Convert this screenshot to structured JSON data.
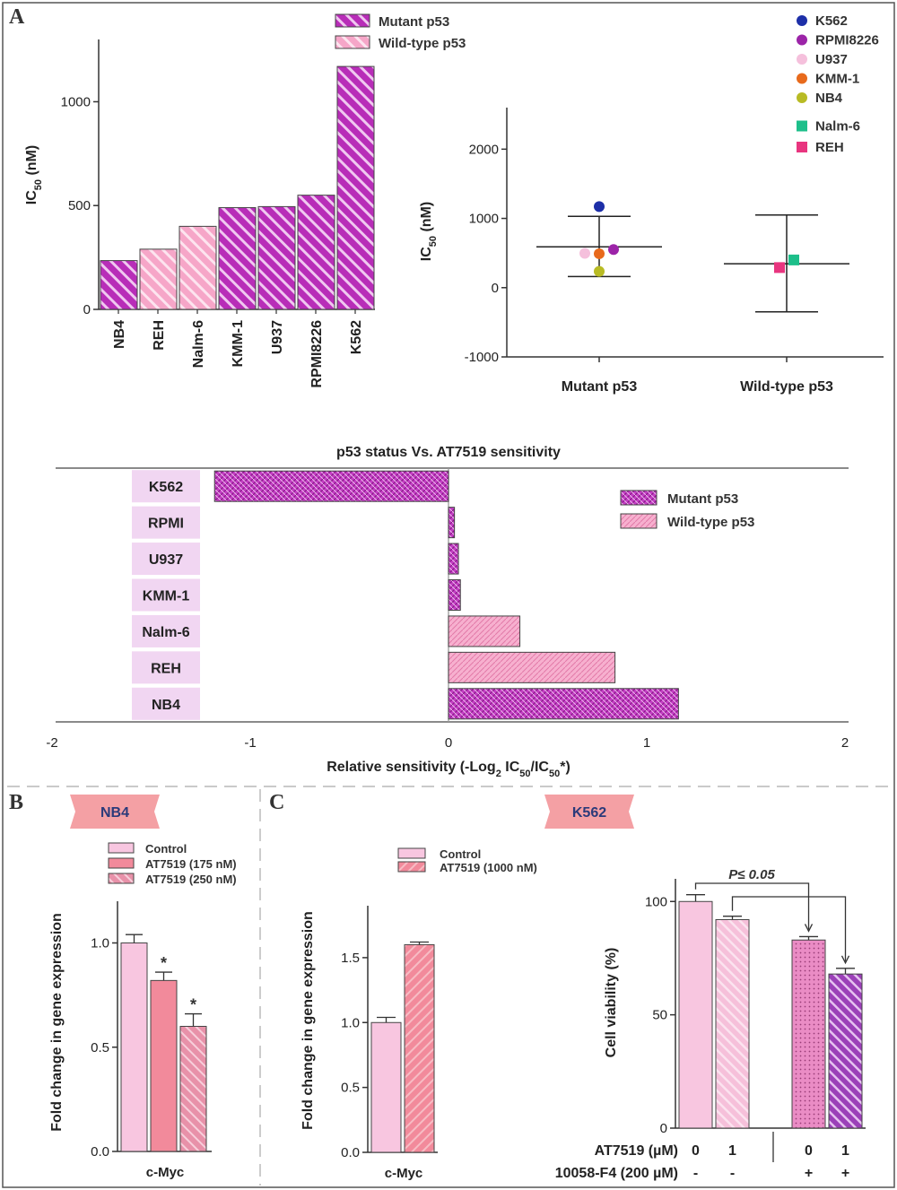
{
  "panels": {
    "A": "A",
    "B": "B",
    "C": "C"
  },
  "colors": {
    "mutant": "#b82db8",
    "mutant_stripe": "#f0c8f0",
    "wildtype": "#f6a6c8",
    "wildtype_stripe": "#fde4ef",
    "control": "#f8c6e0",
    "at175": "#f28a9b",
    "at250": "#e891a9",
    "badge": "#f4a0a4",
    "badge_text": "#2b3a7a",
    "purple_text": "#8a2a8a"
  },
  "chart_data": [
    {
      "id": "A1",
      "type": "bar",
      "categories": [
        "NB4",
        "REH",
        "Nalm-6",
        "KMM-1",
        "U937",
        "RPMI8226",
        "K562"
      ],
      "groups": [
        "mutant",
        "wildtype",
        "wildtype",
        "mutant",
        "mutant",
        "mutant",
        "mutant"
      ],
      "values": [
        235,
        290,
        400,
        490,
        495,
        550,
        1170
      ],
      "ylabel": "IC",
      "ylabel_sub": "50",
      "ylabel_unit": " (nM)",
      "ylim": [
        0,
        1300
      ],
      "yticks": [
        0,
        500,
        1000
      ],
      "legend": [
        "Mutant p53",
        "Wild-type p53"
      ]
    },
    {
      "id": "A2",
      "type": "scatter",
      "categories": [
        "Mutant p53",
        "Wild-type p53"
      ],
      "ylabel": "IC",
      "ylabel_sub": "50",
      "ylabel_unit": " (nM)",
      "ylim": [
        -1000,
        2600
      ],
      "yticks": [
        -1000,
        0,
        1000,
        2000
      ],
      "summary": [
        {
          "group": "Mutant p53",
          "mean": 590,
          "upper": 1030,
          "lower": 160
        },
        {
          "group": "Wild-type p53",
          "mean": 345,
          "upper": 1050,
          "lower": -350
        }
      ],
      "points": [
        {
          "name": "K562",
          "group": 0,
          "y": 1170,
          "color": "#1d2fa8",
          "shape": "circle"
        },
        {
          "name": "RPMI8226",
          "group": 0,
          "y": 550,
          "color": "#9c24a8",
          "shape": "circle"
        },
        {
          "name": "U937",
          "group": 0,
          "y": 495,
          "color": "#f5c0dc",
          "shape": "circle"
        },
        {
          "name": "KMM-1",
          "group": 0,
          "y": 490,
          "color": "#e86a1c",
          "shape": "circle"
        },
        {
          "name": "NB4",
          "group": 0,
          "y": 235,
          "color": "#b8bb24",
          "shape": "circle"
        },
        {
          "name": "Nalm-6",
          "group": 1,
          "y": 400,
          "color": "#1dbf8a",
          "shape": "square"
        },
        {
          "name": "REH",
          "group": 1,
          "y": 290,
          "color": "#e8357f",
          "shape": "square"
        }
      ]
    },
    {
      "id": "A3",
      "type": "bar",
      "orientation": "horizontal",
      "title": "p53 status Vs. AT7519 sensitivity",
      "categories": [
        "K562",
        "RPMI",
        "U937",
        "KMM-1",
        "Nalm-6",
        "REH",
        "NB4"
      ],
      "groups": [
        "mutant",
        "mutant",
        "mutant",
        "mutant",
        "wildtype",
        "wildtype",
        "mutant"
      ],
      "values": [
        -1.18,
        0.03,
        0.05,
        0.06,
        0.36,
        0.84,
        1.16
      ],
      "xlim": [
        -2,
        2
      ],
      "xticks": [
        -2,
        -1,
        0,
        1,
        2
      ],
      "xlabel_pre": "Relative sensitivity (-Log",
      "xlabel_sub1": "2",
      "xlabel_mid": " IC",
      "xlabel_sub2": "50",
      "xlabel_mid2": "/IC",
      "xlabel_sub3": "50",
      "xlabel_post": "*)",
      "legend": [
        "Mutant p53",
        "Wild-type p53"
      ]
    },
    {
      "id": "B",
      "type": "bar",
      "badge": "NB4",
      "categories": [
        "c-Myc"
      ],
      "series": [
        {
          "name": "Control",
          "values": [
            1.0
          ],
          "err": [
            0.04
          ],
          "sig": ""
        },
        {
          "name": "AT7519 (175 nM)",
          "values": [
            0.82
          ],
          "err": [
            0.04
          ],
          "sig": "*"
        },
        {
          "name": "AT7519 (250 nM)",
          "values": [
            0.6
          ],
          "err": [
            0.06
          ],
          "sig": "*"
        }
      ],
      "ylabel": "Fold change in gene expression",
      "ylim": [
        0,
        1.2
      ],
      "yticks": [
        "0.0",
        "0.5",
        "1.0"
      ]
    },
    {
      "id": "C1",
      "type": "bar",
      "badge": "K562",
      "categories": [
        "c-Myc"
      ],
      "series": [
        {
          "name": "Control",
          "values": [
            1.0
          ],
          "err": [
            0.04
          ]
        },
        {
          "name": "AT7519 (1000 nM)",
          "values": [
            1.6
          ],
          "err": [
            0.02
          ]
        }
      ],
      "ylabel": "Fold change in gene expression",
      "ylim": [
        0,
        1.9
      ],
      "yticks": [
        "0.0",
        "0.5",
        "1.0",
        "1.5"
      ]
    },
    {
      "id": "C2",
      "type": "bar",
      "values": [
        100,
        92,
        83,
        68
      ],
      "err": [
        3,
        1.5,
        1.5,
        2.5
      ],
      "ylabel": "Cell viability (%)",
      "ylim": [
        0,
        110
      ],
      "yticks": [
        "0",
        "50",
        "100"
      ],
      "row1_label": "AT7519 (µM)",
      "row1": [
        "0",
        "1",
        "0",
        "1"
      ],
      "row2_label": "10058-F4 (200 µM)",
      "row2": [
        "-",
        "-",
        "+",
        "+"
      ],
      "annotation": "P≤ 0.05"
    }
  ]
}
